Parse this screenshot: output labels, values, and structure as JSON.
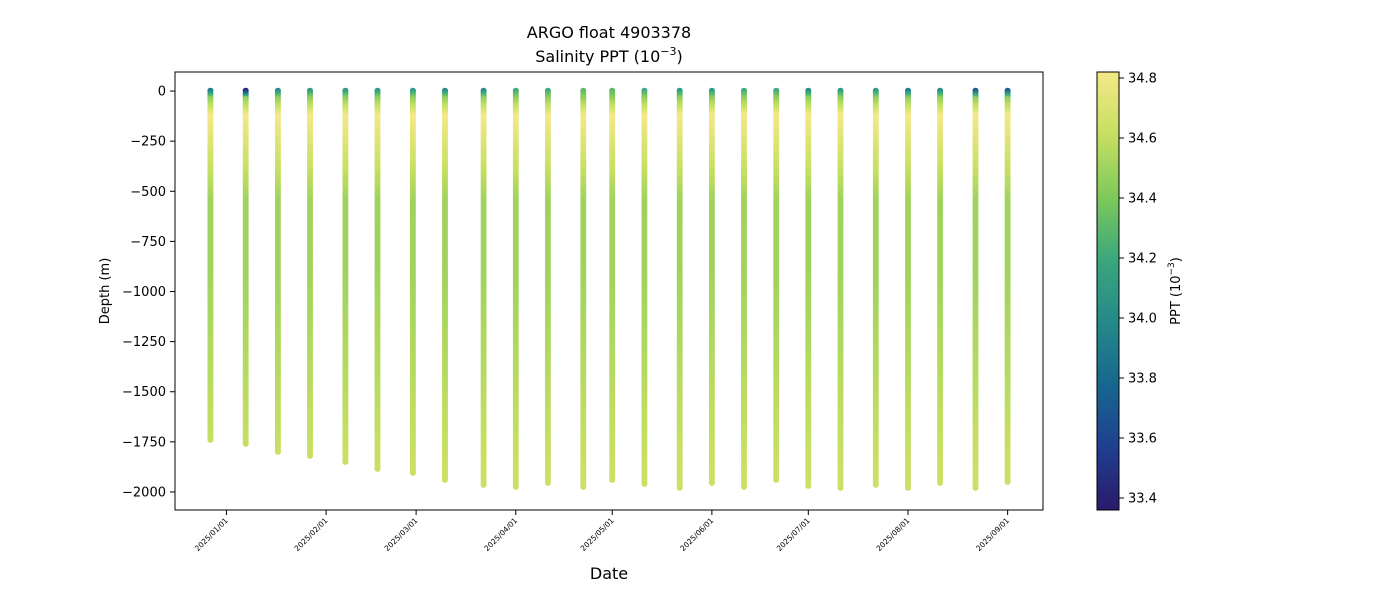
{
  "chart_data": {
    "type": "scatter",
    "title": "ARGO float 4903378",
    "subtitle": "Salinity PPT (10",
    "subtitle_exp": "−3",
    "subtitle_end": ")",
    "xlabel": "Date",
    "ylabel": "Depth (m)",
    "xlim": [
      "2024-12-16",
      "2025-09-12"
    ],
    "ylim": [
      -2090,
      95
    ],
    "x_ticks": [
      "2025-01-01",
      "2025-02-01",
      "2025-03-01",
      "2025-04-01",
      "2025-05-01",
      "2025-06-01",
      "2025-07-01",
      "2025-08-01",
      "2025-09-01"
    ],
    "x_tick_labels": [
      "2025/01/01",
      "2025/02/01",
      "2025/03/01",
      "2025/04/01",
      "2025/05/01",
      "2025/06/01",
      "2025/07/01",
      "2025/08/01",
      "2025/09/01"
    ],
    "y_ticks": [
      0,
      -250,
      -500,
      -750,
      -1000,
      -1250,
      -1500,
      -1750,
      -2000
    ],
    "y_tick_labels": [
      "0",
      "−250",
      "−500",
      "−750",
      "−1000",
      "−1250",
      "−1500",
      "−1750",
      "−2000"
    ],
    "grid": false,
    "colormap": "summer-like (dark blue → teal → green → pale yellow)",
    "colorbar": {
      "label": "PPT (10",
      "label_exp": "−3",
      "label_end": ")",
      "range": [
        33.36,
        34.82
      ],
      "ticks": [
        33.4,
        33.6,
        33.8,
        34.0,
        34.2,
        34.4,
        34.6,
        34.8
      ],
      "tick_labels": [
        "33.4",
        "33.6",
        "33.8",
        "34.0",
        "34.2",
        "34.4",
        "34.6",
        "34.8"
      ],
      "colors": [
        "#2b1a6b",
        "#1f3f8f",
        "#16678f",
        "#258989",
        "#3aa77c",
        "#7ec95a",
        "#c6df62",
        "#f4e887"
      ]
    },
    "profiles": [
      {
        "date": "2024-12-27",
        "max_depth": -1740,
        "surface_salinity": 33.9
      },
      {
        "date": "2025-01-07",
        "max_depth": -1760,
        "surface_salinity": 33.4
      },
      {
        "date": "2025-01-17",
        "max_depth": -1800,
        "surface_salinity": 34.0
      },
      {
        "date": "2025-01-27",
        "max_depth": -1820,
        "surface_salinity": 34.1
      },
      {
        "date": "2025-02-07",
        "max_depth": -1850,
        "surface_salinity": 34.1
      },
      {
        "date": "2025-02-17",
        "max_depth": -1885,
        "surface_salinity": 34.1
      },
      {
        "date": "2025-02-28",
        "max_depth": -1905,
        "surface_salinity": 34.1
      },
      {
        "date": "2025-03-10",
        "max_depth": -1940,
        "surface_salinity": 34.0
      },
      {
        "date": "2025-03-22",
        "max_depth": -1965,
        "surface_salinity": 34.0
      },
      {
        "date": "2025-04-01",
        "max_depth": -1975,
        "surface_salinity": 34.2
      },
      {
        "date": "2025-04-11",
        "max_depth": -1955,
        "surface_salinity": 34.2
      },
      {
        "date": "2025-04-22",
        "max_depth": -1975,
        "surface_salinity": 34.3
      },
      {
        "date": "2025-05-01",
        "max_depth": -1940,
        "surface_salinity": 34.3
      },
      {
        "date": "2025-05-11",
        "max_depth": -1960,
        "surface_salinity": 34.2
      },
      {
        "date": "2025-05-22",
        "max_depth": -1980,
        "surface_salinity": 34.1
      },
      {
        "date": "2025-06-01",
        "max_depth": -1955,
        "surface_salinity": 34.1
      },
      {
        "date": "2025-06-11",
        "max_depth": -1975,
        "surface_salinity": 34.2
      },
      {
        "date": "2025-06-21",
        "max_depth": -1940,
        "surface_salinity": 34.2
      },
      {
        "date": "2025-07-01",
        "max_depth": -1970,
        "surface_salinity": 34.0
      },
      {
        "date": "2025-07-11",
        "max_depth": -1980,
        "surface_salinity": 34.1
      },
      {
        "date": "2025-07-22",
        "max_depth": -1965,
        "surface_salinity": 34.1
      },
      {
        "date": "2025-08-01",
        "max_depth": -1980,
        "surface_salinity": 33.9
      },
      {
        "date": "2025-08-11",
        "max_depth": -1955,
        "surface_salinity": 34.0
      },
      {
        "date": "2025-08-22",
        "max_depth": -1980,
        "surface_salinity": 33.7
      },
      {
        "date": "2025-09-01",
        "max_depth": -1950,
        "surface_salinity": 33.7
      }
    ]
  }
}
